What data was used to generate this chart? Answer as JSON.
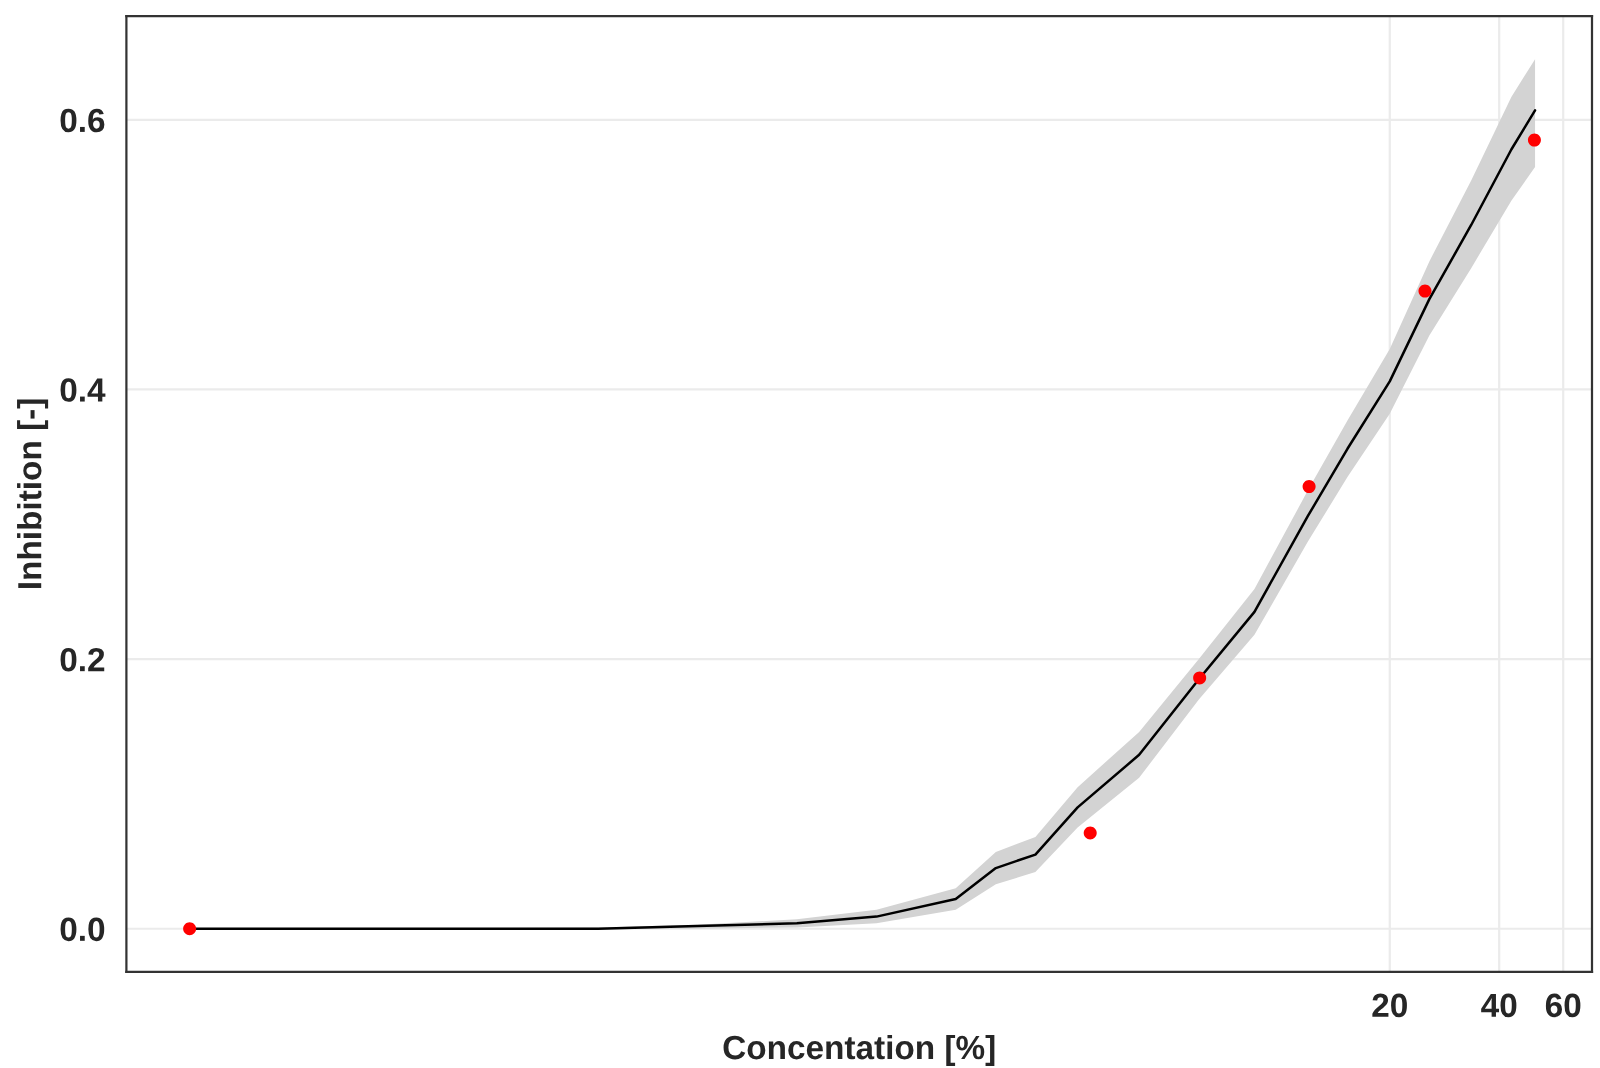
{
  "chart_data": {
    "type": "scatter",
    "xlabel": "Concentation [%]",
    "ylabel": "Inhibition [-]",
    "log": "x",
    "xlim": [
      0.0067,
      72
    ],
    "xticks": [
      20,
      40,
      60
    ],
    "ylim": [
      -0.032,
      0.677
    ],
    "yticks": [
      {
        "value": 0,
        "label": "0.0"
      },
      {
        "value": 0.2,
        "label": "0.2"
      },
      {
        "value": 0.4,
        "label": "0.4"
      },
      {
        "value": 0.6,
        "label": "0.6"
      }
    ],
    "grid": true,
    "series": [
      {
        "marker": "circle",
        "color": "#ff0000",
        "x": [
          0.01,
          3,
          6,
          12,
          25,
          50
        ],
        "values": [
          0,
          0.071,
          0.186,
          0.328,
          0.473,
          0.585
        ]
      },
      {
        "type": "line",
        "color": "#000000",
        "x": [
          0.01,
          0.0376,
          0.133,
          0.249,
          0.468,
          0.775,
          1.28,
          1.65,
          2.12,
          2.77,
          4.09,
          5.97,
          8.49,
          11.9,
          15.3,
          20,
          25.7,
          33.5,
          43.2,
          50.2
        ],
        "values": [
          0,
          0,
          0,
          0.002,
          0.004,
          0.009,
          0.022,
          0.045,
          0.055,
          0.09,
          0.129,
          0.185,
          0.235,
          0.306,
          0.356,
          0.406,
          0.467,
          0.522,
          0.578,
          0.607
        ],
        "upper": [
          0,
          0,
          0.001,
          0.003,
          0.007,
          0.014,
          0.03,
          0.057,
          0.068,
          0.105,
          0.146,
          0.2,
          0.252,
          0.325,
          0.377,
          0.43,
          0.495,
          0.555,
          0.617,
          0.645
        ],
        "lower": [
          0,
          0,
          0,
          0,
          0.001,
          0.004,
          0.014,
          0.033,
          0.042,
          0.075,
          0.112,
          0.17,
          0.218,
          0.287,
          0.335,
          0.382,
          0.44,
          0.49,
          0.54,
          0.565
        ]
      }
    ]
  }
}
